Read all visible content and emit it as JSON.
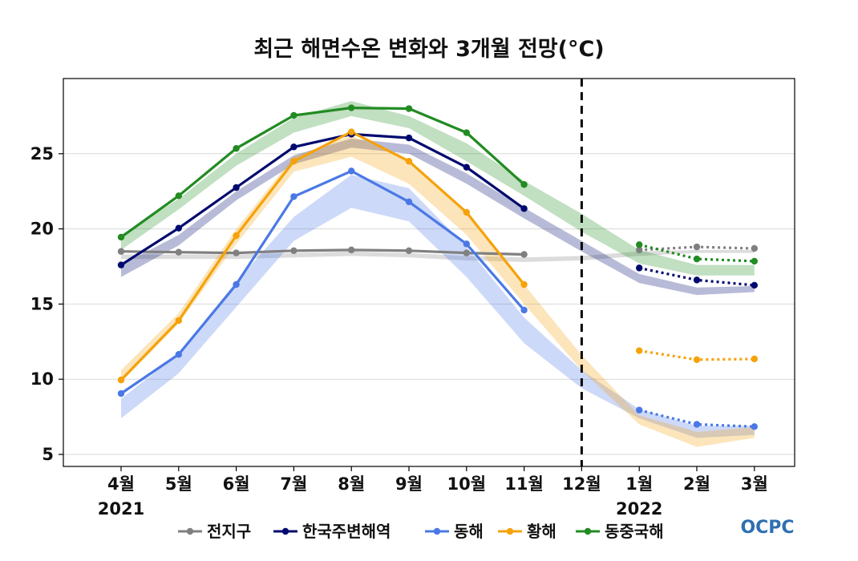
{
  "chart_data": {
    "type": "line",
    "title": "최근 해면수온 변화와 3개월 전망(°C)",
    "categories": [
      "4월",
      "5월",
      "6월",
      "7월",
      "8월",
      "9월",
      "10월",
      "11월",
      "12월",
      "1월",
      "2월",
      "3월"
    ],
    "year_labels": [
      "2021",
      "2022"
    ],
    "ylim": [
      4.2,
      30.0
    ],
    "yticks": [
      5,
      10,
      15,
      20,
      25
    ],
    "grid": true,
    "forecast_divider_after": "12월",
    "legend_position": "bottom",
    "logo": "OCPC",
    "series": [
      {
        "name": "전지구",
        "color": "#808080",
        "observed": [
          18.5,
          18.45,
          18.4,
          18.55,
          18.6,
          18.55,
          18.4,
          18.3,
          null,
          null,
          null,
          null
        ],
        "forecast": [
          null,
          null,
          null,
          null,
          null,
          null,
          null,
          null,
          null,
          18.6,
          18.8,
          18.7
        ],
        "normal_low": [
          18.0,
          18.0,
          18.0,
          18.1,
          18.2,
          18.1,
          17.9,
          17.8,
          17.9,
          18.2,
          18.4,
          18.4
        ],
        "normal_high": [
          18.3,
          18.3,
          18.3,
          18.4,
          18.5,
          18.4,
          18.2,
          18.1,
          18.2,
          18.5,
          18.6,
          18.6
        ]
      },
      {
        "name": "한국주변해역",
        "color": "#000a6e",
        "observed": [
          17.6,
          20.05,
          22.75,
          25.45,
          26.3,
          26.05,
          24.1,
          21.35,
          null,
          null,
          null,
          null
        ],
        "forecast": [
          null,
          null,
          null,
          null,
          null,
          null,
          null,
          null,
          null,
          17.4,
          16.6,
          16.25
        ],
        "normal_low": [
          16.8,
          18.9,
          21.9,
          24.3,
          25.4,
          25.0,
          23.0,
          20.7,
          18.5,
          16.4,
          15.6,
          15.8
        ],
        "normal_high": [
          17.6,
          19.6,
          22.5,
          24.9,
          26.0,
          25.6,
          23.7,
          21.4,
          19.2,
          17.0,
          16.1,
          16.2
        ]
      },
      {
        "name": "동해",
        "color": "#4a78e6",
        "observed": [
          9.05,
          11.65,
          16.3,
          22.15,
          23.85,
          21.8,
          19.0,
          14.6,
          null,
          null,
          null,
          null
        ],
        "forecast": [
          null,
          null,
          null,
          null,
          null,
          null,
          null,
          null,
          null,
          7.95,
          7.0,
          6.85
        ],
        "normal_low": [
          7.4,
          10.4,
          14.8,
          19.2,
          21.4,
          20.5,
          16.8,
          12.4,
          9.4,
          7.4,
          6.1,
          6.3
        ],
        "normal_high": [
          8.7,
          11.7,
          16.5,
          20.8,
          23.6,
          22.7,
          18.8,
          14.1,
          10.6,
          8.0,
          6.9,
          6.9
        ]
      },
      {
        "name": "황해",
        "color": "#f5a20a",
        "observed": [
          9.95,
          13.9,
          19.55,
          24.5,
          26.45,
          24.5,
          21.1,
          16.3,
          null,
          null,
          null,
          null
        ],
        "forecast": [
          null,
          null,
          null,
          null,
          null,
          null,
          null,
          null,
          null,
          11.9,
          11.3,
          11.35
        ],
        "normal_low": [
          9.8,
          13.7,
          19.0,
          23.8,
          24.8,
          23.0,
          19.6,
          15.0,
          10.6,
          7.0,
          5.5,
          6.1
        ],
        "normal_high": [
          10.6,
          14.4,
          20.0,
          24.8,
          26.2,
          24.6,
          21.2,
          16.3,
          11.6,
          7.6,
          6.5,
          6.8
        ]
      },
      {
        "name": "동중국해",
        "color": "#228b22",
        "observed": [
          19.45,
          22.2,
          25.35,
          27.55,
          28.05,
          28.0,
          26.4,
          22.95,
          null,
          null,
          null,
          null
        ],
        "forecast": [
          null,
          null,
          null,
          null,
          null,
          null,
          null,
          null,
          null,
          18.95,
          18.0,
          17.85
        ],
        "normal_low": [
          18.6,
          21.3,
          24.2,
          26.4,
          27.5,
          26.7,
          24.5,
          22.2,
          19.8,
          17.7,
          16.9,
          16.9
        ],
        "normal_high": [
          19.6,
          22.0,
          25.0,
          27.4,
          28.5,
          27.5,
          25.7,
          23.2,
          21.0,
          18.6,
          17.6,
          17.6
        ]
      }
    ]
  }
}
